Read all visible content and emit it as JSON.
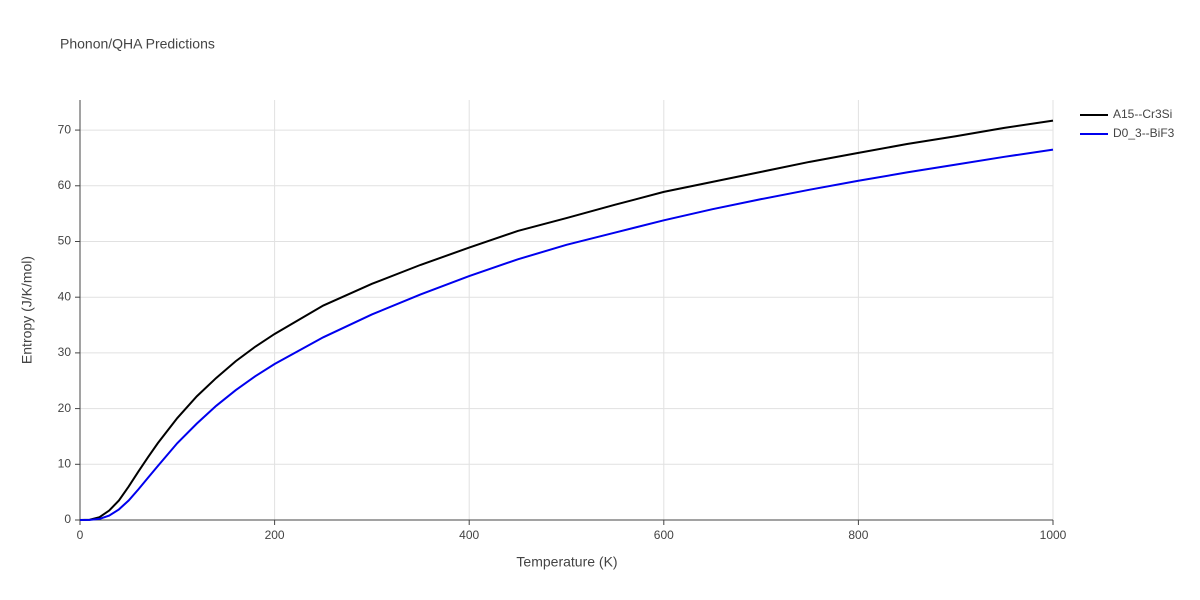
{
  "chart_data": {
    "type": "line",
    "title": "Phonon/QHA Predictions",
    "x_label": "Temperature (K)",
    "y_label": "Entropy (J/K/mol)",
    "x": [
      0,
      10,
      20,
      30,
      40,
      50,
      60,
      70,
      80,
      100,
      120,
      140,
      160,
      180,
      200,
      250,
      300,
      350,
      400,
      450,
      500,
      550,
      600,
      650,
      700,
      750,
      800,
      850,
      900,
      950,
      1000
    ],
    "series": [
      {
        "name": "A15--Cr3Si",
        "color": "#000000",
        "values": [
          0,
          0.05,
          0.5,
          1.7,
          3.5,
          6,
          8.7,
          11.3,
          13.8,
          18.3,
          22.2,
          25.5,
          28.5,
          31.1,
          33.4,
          38.5,
          42.4,
          45.8,
          48.9,
          51.9,
          54.2,
          56.6,
          58.9,
          60.7,
          62.5,
          64.3,
          65.9,
          67.5,
          68.9,
          70.4,
          71.7
        ]
      },
      {
        "name": "D0_3--BiF3",
        "color": "#0000ee",
        "values": [
          0,
          0.02,
          0.2,
          0.8,
          1.9,
          3.5,
          5.5,
          7.6,
          9.7,
          13.8,
          17.3,
          20.5,
          23.3,
          25.8,
          28,
          32.8,
          36.9,
          40.5,
          43.8,
          46.8,
          49.4,
          51.6,
          53.8,
          55.8,
          57.6,
          59.3,
          60.9,
          62.4,
          63.8,
          65.2,
          66.5
        ]
      }
    ],
    "xlim": [
      0,
      1000
    ],
    "xticks": [
      0,
      200,
      400,
      600,
      800,
      1000
    ],
    "ylim": [
      0,
      75.4
    ],
    "yticks": [
      0,
      10,
      20,
      30,
      40,
      50,
      60,
      70
    ],
    "grid": true,
    "legend": "top-right"
  }
}
